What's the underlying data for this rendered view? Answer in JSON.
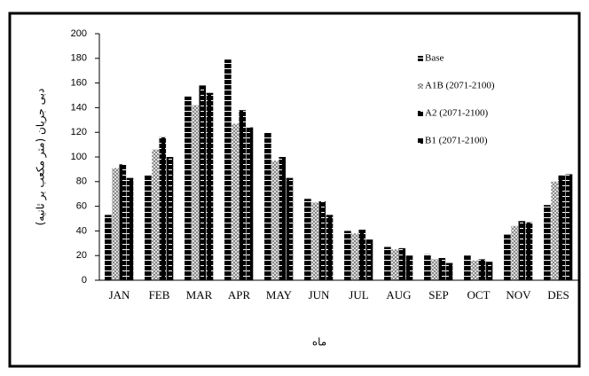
{
  "chart_data": {
    "type": "bar",
    "y_label": "دبی جریان (متر مکعب بر ثانیه)",
    "x_label": "ماه",
    "categories": [
      "JAN",
      "FEB",
      "MAR",
      "APR",
      "MAY",
      "JUN",
      "JUL",
      "AUG",
      "SEP",
      "OCT",
      "NOV",
      "DES"
    ],
    "series": [
      {
        "name": "Base",
        "color": "#000000",
        "values": [
          53,
          85,
          149,
          179,
          120,
          66,
          40,
          27,
          21,
          20,
          37,
          61
        ]
      },
      {
        "name": "A1B (2071-2100)",
        "color": "#808080",
        "values": [
          91,
          106,
          142,
          127,
          97,
          63,
          38,
          25,
          17,
          16,
          44,
          80
        ]
      },
      {
        "name": "A2 (2071-2100)",
        "color": "#000000",
        "values": [
          94,
          116,
          158,
          138,
          100,
          64,
          41,
          26,
          18,
          17,
          48,
          85
        ]
      },
      {
        "name": "B1 (2071-2100)",
        "color": "#000000",
        "values": [
          83,
          100,
          152,
          124,
          83,
          53,
          33,
          20,
          14,
          15,
          47,
          86
        ]
      }
    ],
    "ylim": [
      0,
      200
    ],
    "yticks": [
      0,
      20,
      40,
      60,
      80,
      100,
      120,
      140,
      160,
      180,
      200
    ],
    "legend": "upper right"
  }
}
